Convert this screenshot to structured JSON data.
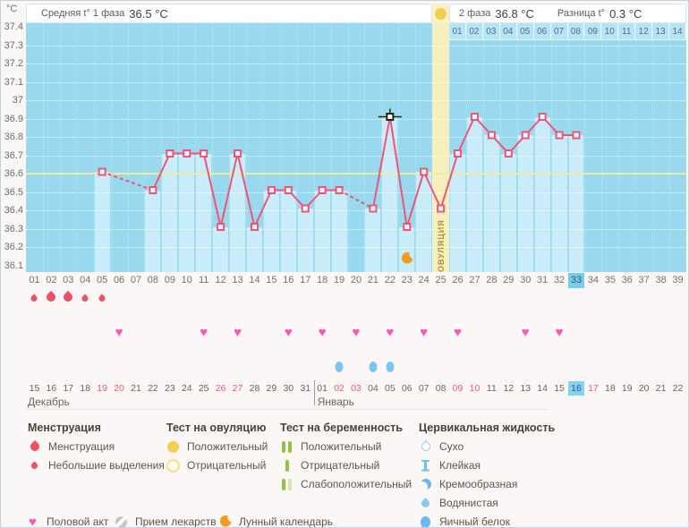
{
  "header": {
    "y_unit": "°C",
    "phase1_label": "Средняя t° 1 фаза",
    "phase1_value": "36.5 °C",
    "phase2_label": "2 фаза",
    "phase2_value": "36.8 °C",
    "diff_label": "Разница t°",
    "diff_value": "0.3 °C"
  },
  "chart_data": {
    "type": "line",
    "title": "Базальная температура",
    "ylim": [
      36.1,
      37.4
    ],
    "y_ticks": [
      "37.4",
      "37.3",
      "37.2",
      "37.1",
      "37",
      "36.9",
      "36.8",
      "36.7",
      "36.6",
      "36.5",
      "36.4",
      "36.3",
      "36.2",
      "36.1"
    ],
    "coverline": 36.6,
    "grid": true,
    "day_labels": [
      "01",
      "02",
      "03",
      "04",
      "05",
      "06",
      "07",
      "08",
      "09",
      "10",
      "11",
      "12",
      "13",
      "14",
      "15",
      "16",
      "17",
      "18",
      "19",
      "20",
      "21",
      "22",
      "23",
      "24",
      "25",
      "26",
      "27",
      "28",
      "29",
      "30",
      "31",
      "32",
      "33",
      "34",
      "35",
      "36",
      "37",
      "38",
      "39"
    ],
    "dpo_labels": [
      "01",
      "02",
      "03",
      "04",
      "05",
      "06",
      "07",
      "08",
      "09",
      "10",
      "11",
      "12",
      "13",
      "14"
    ],
    "temperatures": [
      {
        "day": 5,
        "t": 36.6
      },
      {
        "day": 8,
        "t": 36.5
      },
      {
        "day": 9,
        "t": 36.7
      },
      {
        "day": 10,
        "t": 36.7
      },
      {
        "day": 11,
        "t": 36.7
      },
      {
        "day": 12,
        "t": 36.3
      },
      {
        "day": 13,
        "t": 36.7
      },
      {
        "day": 14,
        "t": 36.3
      },
      {
        "day": 15,
        "t": 36.5
      },
      {
        "day": 16,
        "t": 36.5
      },
      {
        "day": 17,
        "t": 36.4
      },
      {
        "day": 18,
        "t": 36.5
      },
      {
        "day": 19,
        "t": 36.5
      },
      {
        "day": 21,
        "t": 36.4
      },
      {
        "day": 22,
        "t": 36.9
      },
      {
        "day": 23,
        "t": 36.3
      },
      {
        "day": 24,
        "t": 36.6
      },
      {
        "day": 25,
        "t": 36.4
      },
      {
        "day": 26,
        "t": 36.7
      },
      {
        "day": 27,
        "t": 36.9
      },
      {
        "day": 28,
        "t": 36.8
      },
      {
        "day": 29,
        "t": 36.7
      },
      {
        "day": 30,
        "t": 36.8
      },
      {
        "day": 31,
        "t": 36.9
      },
      {
        "day": 32,
        "t": 36.8
      },
      {
        "day": 33,
        "t": 36.8
      }
    ],
    "ovulation": {
      "day": 25,
      "label": "ОВУЛЯЦИЯ",
      "test_positive": true
    },
    "selected_day": 22,
    "today_day": 33,
    "moon_day": 23
  },
  "marker_rows": {
    "menstruation": [
      {
        "day": 1,
        "size": "small"
      },
      {
        "day": 2,
        "size": "big"
      },
      {
        "day": 3,
        "size": "big"
      },
      {
        "day": 4,
        "size": "small"
      },
      {
        "day": 5,
        "size": "small"
      }
    ],
    "intercourse_days": [
      6,
      11,
      13,
      16,
      18,
      20,
      22,
      24,
      26,
      30,
      32
    ],
    "cervical_fluid_days": [
      19,
      21,
      22
    ]
  },
  "calendar": {
    "months": [
      {
        "name": "Декабрь",
        "dates": [
          "15",
          "16",
          "17",
          "18",
          "19",
          "20",
          "21",
          "22",
          "23",
          "24",
          "25",
          "26",
          "27",
          "28",
          "29",
          "30",
          "31"
        ],
        "weekend": [
          "19",
          "20",
          "26",
          "27"
        ],
        "today": ""
      },
      {
        "name": "Январь",
        "dates": [
          "01",
          "02",
          "03",
          "04",
          "05",
          "06",
          "07",
          "08",
          "09",
          "10",
          "11",
          "12",
          "13",
          "14",
          "15",
          "16",
          "17",
          "18",
          "19",
          "20",
          "21",
          "22"
        ],
        "weekend": [
          "02",
          "03",
          "09",
          "10",
          "17"
        ],
        "today": "16"
      }
    ]
  },
  "legend": {
    "columns": [
      {
        "title": "Менструация",
        "items": [
          {
            "icon": "drop-big",
            "label": "Менструация"
          },
          {
            "icon": "drop-small",
            "label": "Небольшие выделения"
          }
        ]
      },
      {
        "title": "Тест на овуляцию",
        "items": [
          {
            "icon": "circle-filled",
            "label": "Положительный"
          },
          {
            "icon": "circle-outline",
            "label": "Отрицательный"
          }
        ]
      },
      {
        "title": "Тест на беременность",
        "items": [
          {
            "icon": "bars-2",
            "label": "Положительный"
          },
          {
            "icon": "bar-1",
            "label": "Отрицательный"
          },
          {
            "icon": "bars-weak",
            "label": "Слабоположительный"
          }
        ]
      },
      {
        "title": "Цервикальная жидкость",
        "items": [
          {
            "icon": "cf-dry",
            "label": "Сухо"
          },
          {
            "icon": "cf-sticky",
            "label": "Клейкая"
          },
          {
            "icon": "cf-creamy",
            "label": "Кремообразная"
          },
          {
            "icon": "cf-watery",
            "label": "Водянистая"
          },
          {
            "icon": "cf-egg",
            "label": "Яичный белок"
          }
        ]
      }
    ],
    "extra": [
      {
        "icon": "heart",
        "label": "Половой акт"
      },
      {
        "icon": "pill",
        "label": "Прием лекарств"
      },
      {
        "icon": "moon",
        "label": "Лунный календарь"
      }
    ]
  },
  "colors": {
    "chart_bg": "#98d9f0",
    "measured_bar": "#c9ecfa",
    "ovulation_band": "#f6efbd",
    "coverline": "#ebeca5",
    "temp_line": "#ee5476",
    "selected_marker": "#222222",
    "today_highlight": "#74cfee",
    "weekend_text": "#f2547c",
    "heart": "#f65ab2",
    "menstruation": "#ee4f63",
    "cervical_fluid": "#7cc5f1",
    "moon": "#f09c1c",
    "ovulation_test": "#f2cf4f",
    "pregnancy_test": "#8dc63f"
  }
}
